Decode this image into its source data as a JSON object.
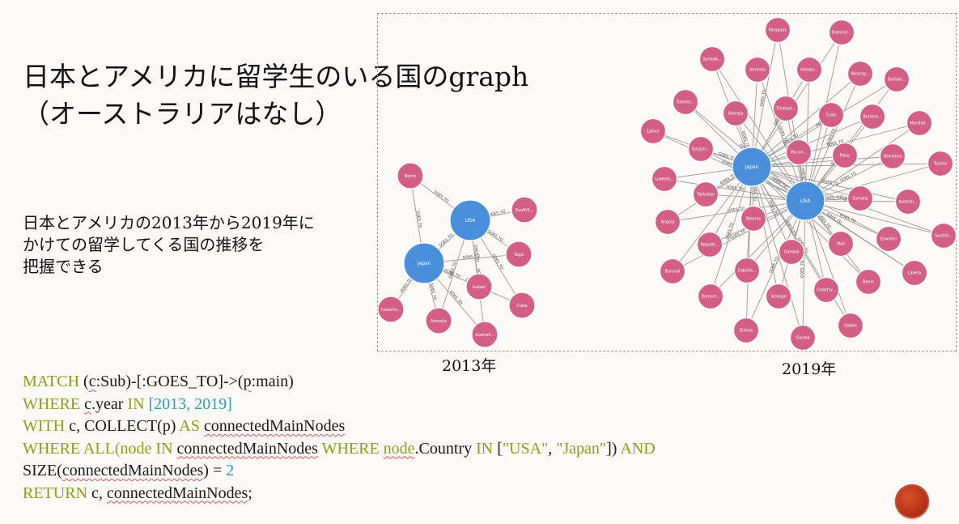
{
  "title": {
    "line1": "日本とアメリカに留学生のいる国のgraph",
    "line2": "（オーストラリアはなし）"
  },
  "description": {
    "line1": "日本とアメリカの2013年から2019年に",
    "line2": "かけての留学してくる国の推移を",
    "line3": "把握できる"
  },
  "captions": {
    "graph_2013": "2013年",
    "graph_2019": "2019年"
  },
  "edge_label": "GOES_TO",
  "colors": {
    "hub": "#4a8fdc",
    "leaf": "#d45f86",
    "keyword": "#88a218",
    "number": "#2b9fa6"
  },
  "graph_2013": {
    "hubs": [
      "USA",
      "Japan"
    ],
    "nodes": [
      "Benin",
      "SouthS...",
      "Togo",
      "Gabon",
      "Cuba",
      "Coted'Iv...",
      "Somalia",
      "Australi..."
    ]
  },
  "graph_2019": {
    "hubs": [
      "Japan",
      "USA"
    ],
    "nodes": [
      "Paraguay",
      "Dominic...",
      "SyrianA...",
      "Armenia",
      "Hondur...",
      "Nicarag...",
      "Barbad...",
      "Turkme...",
      "Georgia",
      "Trinidad...",
      "Cuba",
      "Burkina...",
      "Marshal...",
      "Latvia",
      "Kyrgyzs...",
      "Micron...",
      "Palau",
      "Dominica",
      "Tunisia",
      "Luxemb...",
      "Tajikistan",
      "Somalia",
      "Australi...",
      "Angola",
      "Belarus",
      "Eswatini",
      "SouthS...",
      "Republi...",
      "Gambia",
      "Mali",
      "Liberia",
      "Burundi",
      "CaboVe...",
      "Benin",
      "Democr...",
      "Senegal",
      "Coted'Iv...",
      "Eritrea",
      "Gabon",
      "Guinea"
    ]
  },
  "code": {
    "l1_kw": "MATCH",
    "l1_a": " (",
    "l1_c": "c",
    "l1_b": ":Sub)-[:GOES_TO]->(",
    "l1_p": "p",
    "l1_d": ":main)",
    "l2_kw": "WHERE",
    "l2_a": " ",
    "l2_c": "c",
    "l2_b": ".year ",
    "l2_in": "IN",
    "l2_vals": " [2013, 2019]",
    "l3_kw": "WITH",
    "l3_a": " c, COLLECT(p) ",
    "l3_as": "AS",
    "l3_b": " ",
    "l3_var": "connectedMainNodes",
    "l4_kw": "WHERE ALL(",
    "l4_node": "node",
    "l4_in": " IN ",
    "l4_var": "connectedMainNodes",
    "l4_where": " WHERE ",
    "l4_node2": "node",
    "l4_b": ".Country ",
    "l4_in2": "IN",
    "l4_c": " [",
    "l4_s1": "\"USA\"",
    "l4_d": ", ",
    "l4_s2": "\"Japan\"",
    "l4_e": "]) ",
    "l4_and": "AND",
    "l5_a": "SIZE(",
    "l5_var": "connectedMainNodes",
    "l5_b": ") = ",
    "l5_num": "2",
    "l6_kw": "RETURN",
    "l6_a": " c, ",
    "l6_var": "connectedMainNodes",
    "l6_b": ";"
  }
}
